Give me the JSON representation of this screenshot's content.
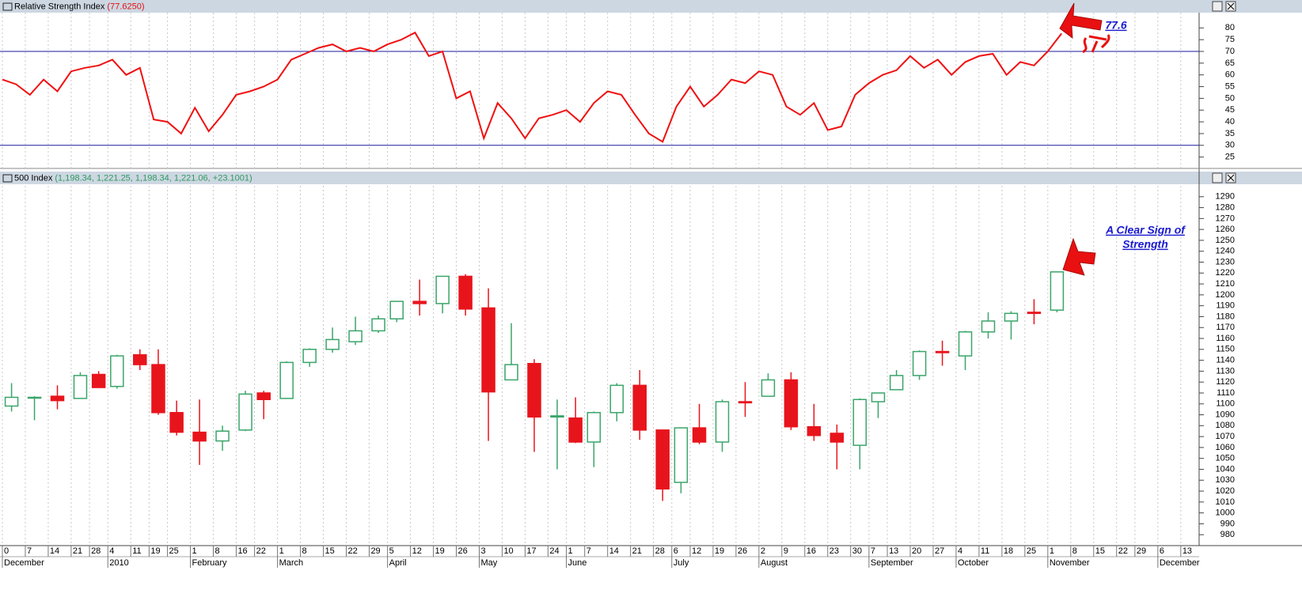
{
  "chart_data": [
    {
      "type": "line",
      "title": "Relative Strength Index",
      "value_text": "(77.6250)",
      "annotation": "77.6",
      "x": [
        0,
        3,
        6,
        9,
        12,
        15,
        18,
        21,
        24,
        27,
        30,
        33,
        36,
        39,
        42,
        45,
        48,
        51,
        54,
        57,
        60,
        63,
        66,
        69,
        72,
        75,
        78,
        81,
        84,
        87,
        90,
        93,
        96,
        99,
        102,
        105,
        108,
        111,
        114,
        117,
        120,
        123,
        126,
        129,
        132,
        135,
        138,
        141,
        144,
        147,
        150,
        153,
        156,
        159,
        162,
        165,
        168,
        171,
        174,
        177,
        180,
        183,
        186,
        189,
        192,
        195,
        198,
        201,
        204,
        207,
        210,
        213,
        216,
        219,
        222,
        225,
        228,
        231
      ],
      "series": [
        {
          "name": "Relative Strength Index",
          "color": "#f01010",
          "values": [
            58,
            56,
            51.5,
            58,
            53,
            61.5,
            63,
            64,
            66.5,
            60,
            63,
            41,
            40,
            35,
            46,
            36,
            43,
            51.5,
            53,
            55,
            58,
            66.5,
            69,
            71.5,
            73,
            70,
            71.5,
            70,
            73,
            75,
            78,
            68,
            70,
            50,
            53,
            33,
            48,
            41.5,
            33,
            41.5,
            43,
            45,
            40,
            48,
            53,
            51.5,
            43,
            35,
            31.5,
            46.5,
            55,
            46.5,
            51.5,
            58,
            56.5,
            61.5,
            60,
            46.5,
            43,
            48,
            36.5,
            38,
            51.5,
            56.5,
            60,
            62,
            68,
            63,
            66.5,
            60,
            65.5,
            68,
            69,
            60,
            65.5,
            64,
            70,
            77.625
          ]
        }
      ],
      "hlines": [
        70,
        30
      ],
      "hline_color": "#1a1aa0",
      "xlim": [
        0,
        261
      ],
      "ylim": [
        20.5,
        86.5
      ],
      "yticks": [
        25,
        30,
        35,
        40,
        45,
        50,
        55,
        60,
        65,
        70,
        75,
        80
      ],
      "grid": true
    },
    {
      "type": "candlestick",
      "title": "500 Index",
      "quote": "(1,198.34, 1,221.25, 1,198.34, 1,221.06, +23.1001)",
      "annotation": [
        "A Clear Sign of",
        "Strength"
      ],
      "up_color": "#3aa56a",
      "down_color": "#e8141c",
      "x": [
        2,
        7,
        12,
        17,
        21,
        25,
        30,
        34,
        38,
        43,
        48,
        53,
        57,
        62,
        67,
        72,
        77,
        82,
        86,
        91,
        96,
        101,
        106,
        111,
        116,
        121,
        125,
        129,
        134,
        139,
        144,
        148,
        152,
        157,
        162,
        167,
        172,
        177,
        182,
        187,
        191,
        195,
        200,
        205,
        210,
        215,
        220,
        225,
        230
      ],
      "open": [
        1098,
        1106,
        1107,
        1105,
        1127,
        1116,
        1145,
        1136,
        1092,
        1074,
        1066,
        1076,
        1110,
        1105,
        1138,
        1150,
        1157,
        1167,
        1178,
        1194,
        1192,
        1217,
        1188,
        1122,
        1137,
        1088,
        1087,
        1065,
        1092,
        1117,
        1076,
        1028,
        1078,
        1065,
        1102,
        1107,
        1122,
        1079,
        1073,
        1062,
        1102,
        1113,
        1126,
        1148,
        1144,
        1166,
        1176,
        1184,
        1186
      ],
      "high": [
        1119,
        1107,
        1117,
        1129,
        1130,
        1145,
        1150,
        1150,
        1103,
        1104,
        1080,
        1112,
        1112,
        1139,
        1151,
        1170,
        1180,
        1181,
        1194,
        1214,
        1217,
        1219,
        1206,
        1174,
        1141,
        1104,
        1106,
        1093,
        1119,
        1131,
        1076,
        1078,
        1100,
        1104,
        1120,
        1128,
        1129,
        1100,
        1081,
        1105,
        1110,
        1131,
        1149,
        1158,
        1167,
        1184,
        1185,
        1196,
        1221.25
      ],
      "low": [
        1093,
        1085,
        1095,
        1105,
        1115,
        1114,
        1131,
        1090,
        1071,
        1044,
        1057,
        1075,
        1086,
        1105,
        1134,
        1147,
        1154,
        1165,
        1175,
        1181,
        1183,
        1181,
        1066,
        1122,
        1056,
        1040,
        1064,
        1042,
        1084,
        1067,
        1011,
        1018,
        1063,
        1056,
        1088,
        1107,
        1076,
        1066,
        1040,
        1040,
        1087,
        1113,
        1122,
        1135,
        1131,
        1160,
        1159,
        1173,
        1184
      ],
      "close": [
        1106,
        1106,
        1103,
        1126,
        1115,
        1144,
        1136,
        1092,
        1074,
        1066,
        1075,
        1109,
        1104,
        1138,
        1150,
        1159,
        1167,
        1178,
        1194,
        1192,
        1217,
        1187,
        1111,
        1136,
        1088,
        1089,
        1065,
        1092,
        1117,
        1076,
        1022,
        1078,
        1065,
        1102,
        1101,
        1122,
        1079,
        1071,
        1065,
        1104,
        1110,
        1126,
        1148,
        1147,
        1166,
        1176,
        1183,
        1183,
        1221.06
      ],
      "xlim": [
        0,
        261
      ],
      "ylim": [
        970,
        1300
      ],
      "yticks": [
        980,
        990,
        1000,
        1010,
        1020,
        1030,
        1040,
        1050,
        1060,
        1070,
        1080,
        1090,
        1100,
        1110,
        1120,
        1130,
        1140,
        1150,
        1160,
        1170,
        1180,
        1190,
        1200,
        1210,
        1220,
        1230,
        1240,
        1250,
        1260,
        1270,
        1280,
        1290
      ],
      "xticks": [
        {
          "value": 0,
          "label": "0"
        },
        {
          "value": 5,
          "label": "7"
        },
        {
          "value": 10,
          "label": "14"
        },
        {
          "value": 15,
          "label": "21"
        },
        {
          "value": 19,
          "label": "28"
        },
        {
          "value": 23,
          "label": "4"
        },
        {
          "value": 28,
          "label": "11"
        },
        {
          "value": 32,
          "label": "19"
        },
        {
          "value": 36,
          "label": "25"
        },
        {
          "value": 41,
          "label": "1"
        },
        {
          "value": 46,
          "label": "8"
        },
        {
          "value": 51,
          "label": "16"
        },
        {
          "value": 55,
          "label": "22"
        },
        {
          "value": 60,
          "label": "1"
        },
        {
          "value": 65,
          "label": "8"
        },
        {
          "value": 70,
          "label": "15"
        },
        {
          "value": 75,
          "label": "22"
        },
        {
          "value": 80,
          "label": "29"
        },
        {
          "value": 84,
          "label": "5"
        },
        {
          "value": 89,
          "label": "12"
        },
        {
          "value": 94,
          "label": "19"
        },
        {
          "value": 99,
          "label": "26"
        },
        {
          "value": 104,
          "label": "3"
        },
        {
          "value": 109,
          "label": "10"
        },
        {
          "value": 114,
          "label": "17"
        },
        {
          "value": 119,
          "label": "24"
        },
        {
          "value": 123,
          "label": "1"
        },
        {
          "value": 127,
          "label": "7"
        },
        {
          "value": 132,
          "label": "14"
        },
        {
          "value": 137,
          "label": "21"
        },
        {
          "value": 142,
          "label": "28"
        },
        {
          "value": 146,
          "label": "6"
        },
        {
          "value": 150,
          "label": "12"
        },
        {
          "value": 155,
          "label": "19"
        },
        {
          "value": 160,
          "label": "26"
        },
        {
          "value": 165,
          "label": "2"
        },
        {
          "value": 170,
          "label": "9"
        },
        {
          "value": 175,
          "label": "16"
        },
        {
          "value": 180,
          "label": "23"
        },
        {
          "value": 185,
          "label": "30"
        },
        {
          "value": 189,
          "label": "7"
        },
        {
          "value": 193,
          "label": "13"
        },
        {
          "value": 198,
          "label": "20"
        },
        {
          "value": 203,
          "label": "27"
        },
        {
          "value": 208,
          "label": "4"
        },
        {
          "value": 213,
          "label": "11"
        },
        {
          "value": 218,
          "label": "18"
        },
        {
          "value": 223,
          "label": "25"
        },
        {
          "value": 228,
          "label": "1"
        },
        {
          "value": 233,
          "label": "8"
        },
        {
          "value": 238,
          "label": "15"
        },
        {
          "value": 243,
          "label": "22"
        },
        {
          "value": 247,
          "label": "29"
        },
        {
          "value": 252,
          "label": "6"
        },
        {
          "value": 257,
          "label": "13"
        }
      ],
      "months": [
        {
          "value": 0,
          "label": "December"
        },
        {
          "value": 23,
          "label": "2010"
        },
        {
          "value": 41,
          "label": "February"
        },
        {
          "value": 60,
          "label": "March"
        },
        {
          "value": 84,
          "label": "April"
        },
        {
          "value": 104,
          "label": "May"
        },
        {
          "value": 123,
          "label": "June"
        },
        {
          "value": 146,
          "label": "July"
        },
        {
          "value": 165,
          "label": "August"
        },
        {
          "value": 189,
          "label": "September"
        },
        {
          "value": 208,
          "label": "October"
        },
        {
          "value": 228,
          "label": "November"
        },
        {
          "value": 252,
          "label": "December"
        }
      ],
      "grid": true
    }
  ]
}
